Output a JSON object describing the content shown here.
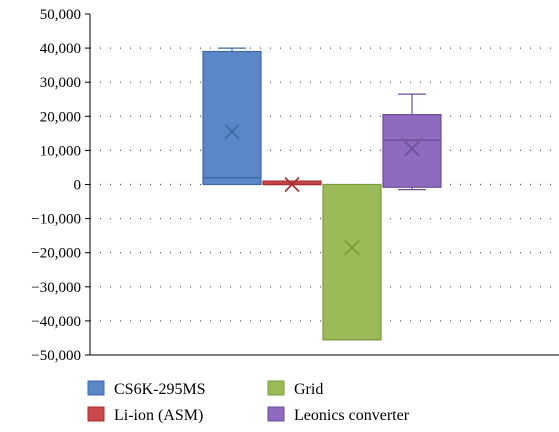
{
  "chart_data": {
    "type": "box",
    "title": "",
    "xlabel": "",
    "ylabel": "",
    "ylim": [
      -50000,
      50000
    ],
    "yticks": [
      50000,
      40000,
      30000,
      20000,
      10000,
      0,
      -10000,
      -20000,
      -30000,
      -40000,
      -50000
    ],
    "ytick_labels": [
      "50,000",
      "40,000",
      "30,000",
      "20,000",
      "10,000",
      "0",
      "−10,000",
      "−20,000",
      "−30,000",
      "−40,000",
      "−50,000"
    ],
    "grid": "horizontal dotted",
    "legend_position": "bottom",
    "series": [
      {
        "name": "CS6K-295MS",
        "color": "#5b87c8",
        "edge": "#3d6aa6",
        "min": 0,
        "q1": 0,
        "median": 2000,
        "q3": 39000,
        "max": 40000,
        "mean": 15500
      },
      {
        "name": "Li-ion (ASM)",
        "color": "#c9484a",
        "edge": "#a52f31",
        "min": 0,
        "q1": 0,
        "median": 0,
        "q3": 1000,
        "max": 1000,
        "mean": 0
      },
      {
        "name": "Grid",
        "color": "#9bbb59",
        "edge": "#7a9a3c",
        "min": -45500,
        "q1": -45500,
        "median": -45500,
        "q3": 0,
        "max": 0,
        "mean": -18500
      },
      {
        "name": "Leonics converter",
        "color": "#8e6bbf",
        "edge": "#6a4c98",
        "min": -1500,
        "q1": -800,
        "median": 13000,
        "q3": 20500,
        "max": 26500,
        "mean": 10500
      }
    ]
  }
}
